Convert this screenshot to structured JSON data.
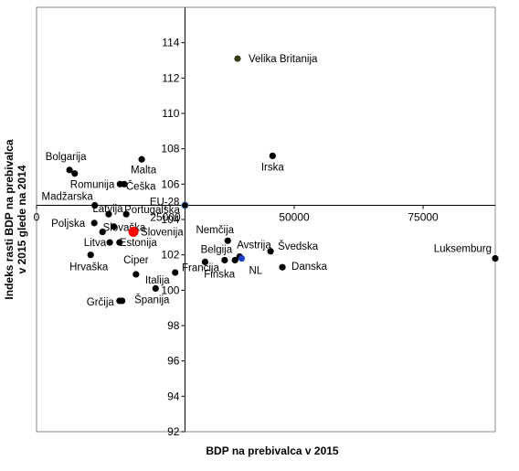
{
  "chart_data": {
    "type": "scatter",
    "xlabel": "BDP na prebivalca v 2015",
    "ylabel": "Indeks rasti BDP na prebivalca v 2015 glede na 2014",
    "xlim": [
      0,
      89000
    ],
    "ylim": [
      92,
      116
    ],
    "x_ticks": [
      0,
      25000,
      50000,
      75000
    ],
    "x_tick_labels": [
      "0",
      "25000",
      "50000",
      "75000"
    ],
    "y_ticks": [
      92,
      94,
      96,
      98,
      100,
      102,
      104,
      106,
      108,
      110,
      112,
      114
    ],
    "x_axis_crosses_y": 104.8,
    "y_axis_crosses_x": 28800,
    "grid": false,
    "points": [
      {
        "label": "Velika Britanija",
        "x": 39000,
        "y": 113.1,
        "color": "#3a3a1a"
      },
      {
        "label": "Irska",
        "x": 45800,
        "y": 107.6,
        "color": "#000000"
      },
      {
        "label": "Luksemburg",
        "x": 89000,
        "y": 101.8,
        "color": "#000000"
      },
      {
        "label": "Bolgarija",
        "x": 6400,
        "y": 106.8,
        "color": "#000000"
      },
      {
        "label": "",
        "x": 7400,
        "y": 106.6,
        "color": "#000000"
      },
      {
        "label": "Malta",
        "x": 20400,
        "y": 107.4,
        "color": "#000000"
      },
      {
        "label": "Romunija",
        "x": 16200,
        "y": 106.0,
        "color": "#000000"
      },
      {
        "label": "Češka",
        "x": 17000,
        "y": 106.0,
        "color": "#000000"
      },
      {
        "label": "Madžarska",
        "x": 11300,
        "y": 104.8,
        "color": "#000000"
      },
      {
        "label": "Latvija",
        "x": 14000,
        "y": 104.3,
        "color": "#000000"
      },
      {
        "label": "Portugalska",
        "x": 17400,
        "y": 104.3,
        "color": "#000000"
      },
      {
        "label": "Poljska",
        "x": 11200,
        "y": 103.8,
        "color": "#000000"
      },
      {
        "label": "",
        "x": 12800,
        "y": 103.3,
        "color": "#000000"
      },
      {
        "label": "Slovaška",
        "x": 15000,
        "y": 103.6,
        "color": "#000000"
      },
      {
        "label": "Litva",
        "x": 14200,
        "y": 102.7,
        "color": "#000000"
      },
      {
        "label": "Estonija",
        "x": 16100,
        "y": 102.7,
        "color": "#000000"
      },
      {
        "label": "Slovenija",
        "x": 18800,
        "y": 103.3,
        "color": "#ff0000"
      },
      {
        "label": "EU-28",
        "x": 28800,
        "y": 104.8,
        "color": "#000000"
      },
      {
        "label": "Hrvaška",
        "x": 10500,
        "y": 102.0,
        "color": "#000000"
      },
      {
        "label": "Ciper",
        "x": 19300,
        "y": 100.9,
        "color": "#000000"
      },
      {
        "label": "Grčija",
        "x": 16100,
        "y": 99.4,
        "color": "#000000"
      },
      {
        "label": "",
        "x": 16600,
        "y": 99.4,
        "color": "#000000"
      },
      {
        "label": "Španija",
        "x": 23100,
        "y": 100.1,
        "color": "#000000"
      },
      {
        "label": "Italija",
        "x": 26900,
        "y": 101.0,
        "color": "#000000"
      },
      {
        "label": "Francija",
        "x": 32700,
        "y": 101.6,
        "color": "#000000"
      },
      {
        "label": "Nemčija",
        "x": 37100,
        "y": 102.8,
        "color": "#000000"
      },
      {
        "label": "Belgija",
        "x": 36500,
        "y": 101.7,
        "color": "#000000"
      },
      {
        "label": "Finska",
        "x": 38500,
        "y": 101.7,
        "color": "#000000"
      },
      {
        "label": "Avstrija",
        "x": 39400,
        "y": 101.9,
        "color": "#000000"
      },
      {
        "label": "NL",
        "x": 39800,
        "y": 101.8,
        "color": "#1f3fbf"
      },
      {
        "label": "Švedska",
        "x": 45400,
        "y": 102.2,
        "color": "#000000"
      },
      {
        "label": "Danska",
        "x": 47700,
        "y": 101.3,
        "color": "#000000"
      }
    ]
  }
}
